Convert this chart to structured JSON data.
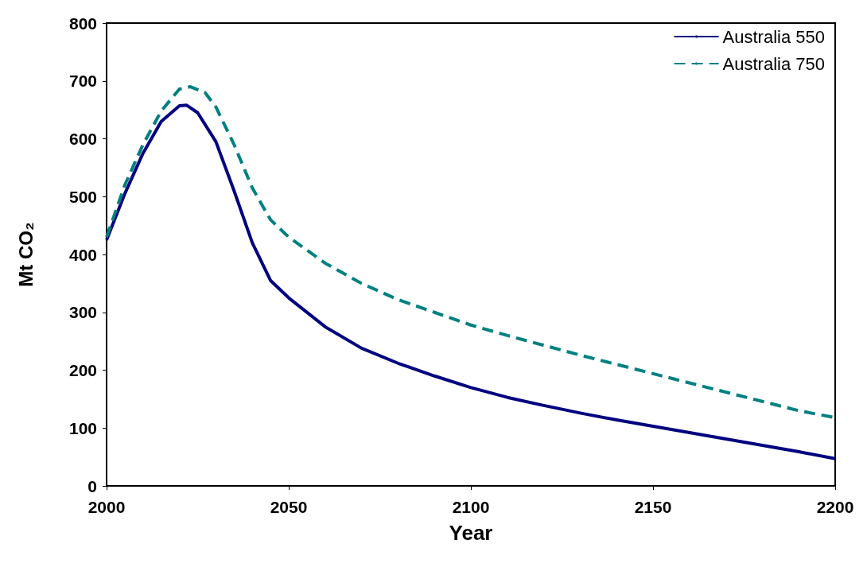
{
  "chart_data": {
    "type": "line",
    "xlabel": "Year",
    "ylabel": "Mt CO₂",
    "xlim": [
      2000,
      2200
    ],
    "xticks": [
      2000,
      2050,
      2100,
      2150,
      2200
    ],
    "ylim": [
      0,
      800
    ],
    "yticks": [
      0,
      100,
      200,
      300,
      400,
      500,
      600,
      700,
      800
    ],
    "grid": false,
    "legend": "top right",
    "marker": "none",
    "series": [
      {
        "name": "Australia 550",
        "color": "#000080",
        "line_style": "solid",
        "x": [
          2000,
          2005,
          2010,
          2015,
          2020,
          2022,
          2025,
          2030,
          2035,
          2040,
          2045,
          2050,
          2060,
          2070,
          2080,
          2090,
          2100,
          2110,
          2120,
          2130,
          2140,
          2150,
          2160,
          2170,
          2180,
          2190,
          2200
        ],
        "values": [
          425,
          505,
          575,
          630,
          657,
          658,
          645,
          595,
          510,
          420,
          355,
          325,
          275,
          238,
          212,
          190,
          170,
          153,
          139,
          126,
          114,
          103,
          92,
          81,
          70,
          59,
          47
        ]
      },
      {
        "name": "Australia 750",
        "color": "#008080",
        "line_style": "dashed",
        "x": [
          2000,
          2005,
          2010,
          2015,
          2020,
          2023,
          2027,
          2030,
          2035,
          2040,
          2045,
          2050,
          2060,
          2070,
          2080,
          2090,
          2100,
          2110,
          2120,
          2130,
          2140,
          2150,
          2160,
          2170,
          2180,
          2190,
          2200
        ],
        "values": [
          430,
          520,
          590,
          648,
          686,
          690,
          680,
          655,
          590,
          515,
          460,
          430,
          385,
          350,
          322,
          300,
          278,
          260,
          243,
          226,
          210,
          194,
          178,
          162,
          146,
          130,
          118
        ]
      }
    ]
  }
}
